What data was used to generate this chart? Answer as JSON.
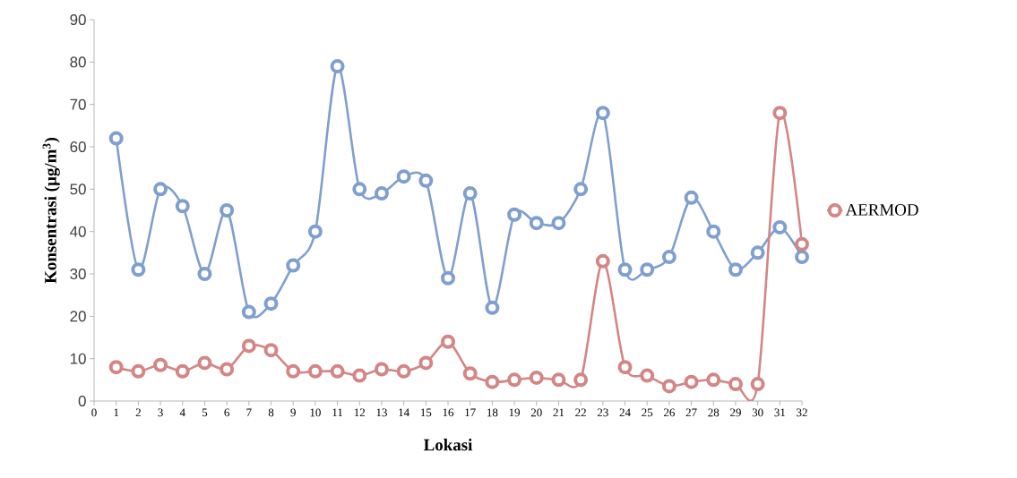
{
  "chart_data": {
    "type": "line",
    "xlabel": "Lokasi",
    "ylabel": "Konsentrasi (µg/m$^{3}$)",
    "x": [
      1,
      2,
      3,
      4,
      5,
      6,
      7,
      8,
      9,
      10,
      11,
      12,
      13,
      14,
      15,
      16,
      17,
      18,
      19,
      20,
      21,
      22,
      23,
      24,
      25,
      26,
      27,
      28,
      29,
      30,
      31,
      32
    ],
    "series": [
      {
        "color": "#7f9fcf",
        "values": [
          62,
          31,
          50,
          46,
          30,
          45,
          21,
          23,
          32,
          40,
          79,
          50,
          49,
          53,
          52,
          29,
          49,
          22,
          44,
          42,
          42,
          50,
          68,
          31,
          31,
          34,
          48,
          40,
          31,
          35,
          41,
          34
        ]
      },
      {
        "name": "AERMOD",
        "color": "#d48585",
        "values": [
          8,
          7,
          8.5,
          7,
          9,
          7.5,
          13,
          12,
          7,
          7,
          7,
          6,
          7.5,
          7,
          9,
          14,
          6.5,
          4.5,
          5,
          5.5,
          5,
          5,
          33,
          8,
          6,
          3.5,
          4.5,
          5,
          4,
          4,
          68,
          37
        ]
      }
    ],
    "xlim": [
      0,
      32
    ],
    "ylim": [
      0,
      90
    ],
    "xticks": [
      0,
      1,
      2,
      3,
      4,
      5,
      6,
      7,
      8,
      9,
      10,
      11,
      12,
      13,
      14,
      15,
      16,
      17,
      18,
      19,
      20,
      21,
      22,
      23,
      24,
      25,
      26,
      27,
      28,
      29,
      30,
      31,
      32
    ],
    "yticks": [
      0,
      10,
      20,
      30,
      40,
      50,
      60,
      70,
      80,
      90
    ],
    "legend": "right",
    "marker": "circle",
    "line_style": "solid"
  }
}
